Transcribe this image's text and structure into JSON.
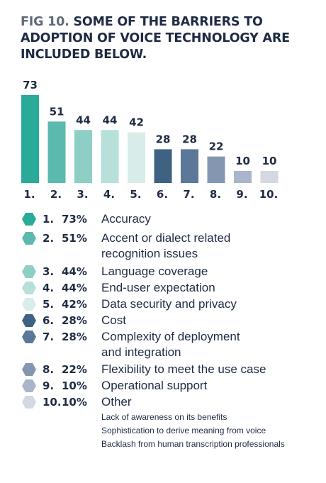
{
  "title": {
    "prefix": "FIG 10.",
    "text": "SOME OF THE BARRIERS TO ADOPTION OF VOICE TECHNOLOGY ARE INCLUDED BELOW."
  },
  "chart_data": {
    "type": "bar",
    "categories": [
      "1.",
      "2.",
      "3.",
      "4.",
      "5.",
      "6.",
      "7.",
      "8.",
      "9.",
      "10."
    ],
    "values": [
      73,
      51,
      44,
      44,
      42,
      28,
      28,
      22,
      10,
      10
    ],
    "colors": [
      "#2aaa98",
      "#5cb9ae",
      "#8dcfc5",
      "#b6e0d9",
      "#d8ece9",
      "#3f6283",
      "#5b7898",
      "#8597b0",
      "#a9b5c9",
      "#d3d8e2"
    ],
    "title": "",
    "xlabel": "",
    "ylabel": "",
    "ylim": [
      0,
      73
    ]
  },
  "legend": [
    {
      "num": "1.",
      "pct": "73%",
      "label": "Accuracy"
    },
    {
      "num": "2.",
      "pct": "51%",
      "label": "Accent or dialect related recognition issues"
    },
    {
      "num": "3.",
      "pct": "44%",
      "label": "Language coverage"
    },
    {
      "num": "4.",
      "pct": "44%",
      "label": "End-user expectation"
    },
    {
      "num": "5.",
      "pct": "42%",
      "label": "Data security and privacy"
    },
    {
      "num": "6.",
      "pct": "28%",
      "label": "Cost"
    },
    {
      "num": "7.",
      "pct": "28%",
      "label": "Complexity of deployment and integration"
    },
    {
      "num": "8.",
      "pct": "22%",
      "label": "Flexibility to meet the use case"
    },
    {
      "num": "9.",
      "pct": "10%",
      "label": "Operational support"
    },
    {
      "num": "10.",
      "pct": "10%",
      "label": "Other"
    }
  ],
  "other_items": [
    "Lack of awareness on its benefits",
    "Sophistication to derive meaning from voice",
    "Backlash from human transcription professionals"
  ]
}
